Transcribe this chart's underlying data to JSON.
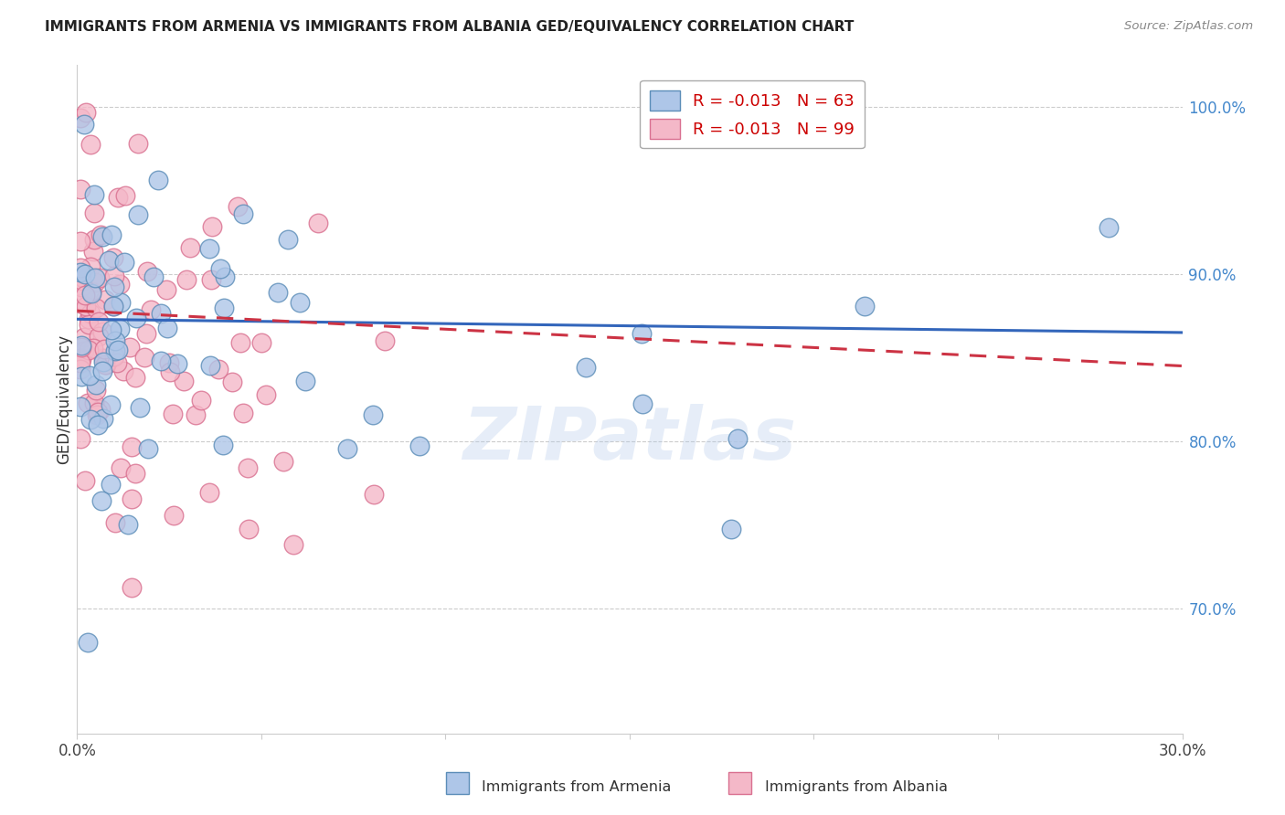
{
  "title": "IMMIGRANTS FROM ARMENIA VS IMMIGRANTS FROM ALBANIA GED/EQUIVALENCY CORRELATION CHART",
  "source": "Source: ZipAtlas.com",
  "ylabel": "GED/Equivalency",
  "xmin": 0.0,
  "xmax": 0.3,
  "ymin": 0.625,
  "ymax": 1.025,
  "yticks": [
    0.7,
    0.8,
    0.9,
    1.0
  ],
  "ytick_labels": [
    "70.0%",
    "80.0%",
    "90.0%",
    "100.0%"
  ],
  "armenia_color": "#aec6e8",
  "albania_color": "#f4b8c8",
  "armenia_edge": "#5b8db8",
  "albania_edge": "#d97090",
  "trend_armenia_color": "#3366bb",
  "trend_albania_color": "#cc3344",
  "background_color": "#ffffff",
  "watermark": "ZIPatlas",
  "trend_arm_y0": 0.873,
  "trend_arm_y1": 0.865,
  "trend_alb_y0": 0.878,
  "trend_alb_y1": 0.845,
  "legend_arm_label": "R = -0.013   N = 63",
  "legend_alb_label": "R = -0.013   N = 99",
  "bottom_legend_arm": "Immigrants from Armenia",
  "bottom_legend_alb": "Immigrants from Albania"
}
